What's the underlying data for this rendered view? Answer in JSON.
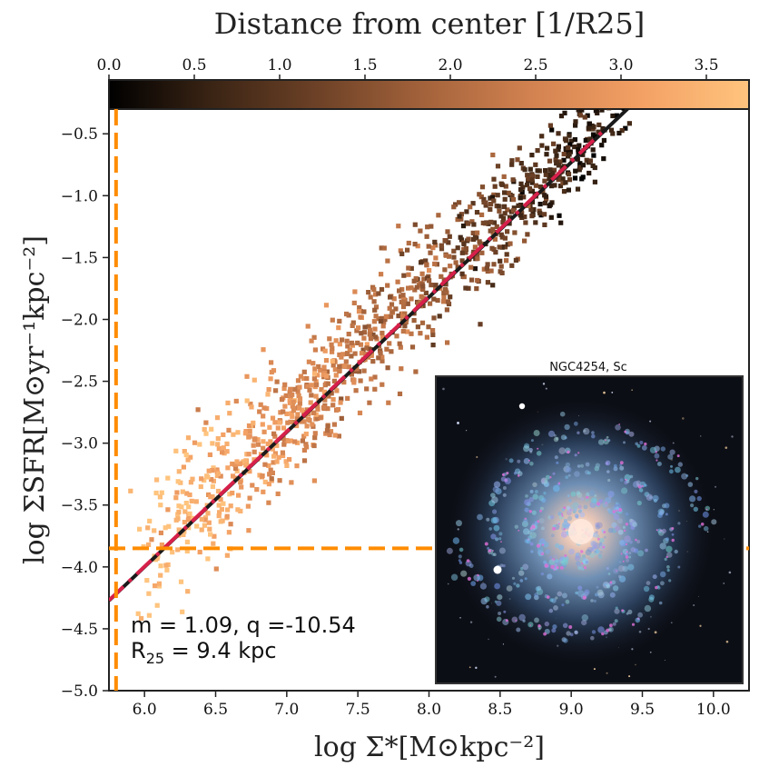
{
  "chart_data": {
    "type": "scatter",
    "xlabel": "log Σ*[M⊙kpc⁻²]",
    "ylabel": "log ΣSFR[M⊙yr⁻¹kpc⁻²]",
    "xlim": [
      5.75,
      10.25
    ],
    "ylim": [
      -5.0,
      -0.3
    ],
    "x_ticks": [
      "6.0",
      "6.5",
      "7.0",
      "7.5",
      "8.0",
      "8.5",
      "9.0",
      "9.5",
      "10.0"
    ],
    "y_ticks": [
      "-0.5",
      "-1.0",
      "-1.5",
      "-2.0",
      "-2.5",
      "-3.0",
      "-3.5",
      "-4.0",
      "-4.5",
      "-5.0"
    ],
    "grid": false,
    "colorbar": {
      "label": "Distance from center [1/R25]",
      "range": [
        0.0,
        3.75
      ],
      "ticks": [
        "0.0",
        "0.5",
        "1.0",
        "1.5",
        "2.0",
        "2.5",
        "3.0",
        "3.5"
      ],
      "colors": [
        "#000000",
        "#3a2414",
        "#6e4227",
        "#a6643c",
        "#d28250",
        "#f3a064",
        "#ffc47e"
      ]
    },
    "fit_line": {
      "slope": 1.09,
      "intercept": -10.54,
      "color": "#1a1a1a",
      "style": "solid"
    },
    "reference_line": {
      "x": [
        5.75,
        9.25
      ],
      "y": [
        -4.27,
        -0.45
      ],
      "color": "#d6204a",
      "style": "dash-dot"
    },
    "threshold_lines": {
      "x": 5.8,
      "y": -3.85,
      "color": "#ff8c00",
      "style": "dashed"
    },
    "point_cloud": {
      "description_free": true,
      "trend": {
        "x_from": 6.0,
        "x_to": 9.4,
        "slope": 1.09,
        "intercept": -10.45,
        "scatter": 0.25
      },
      "count": 1150,
      "color_mapping": "distance decreases with increasing x"
    },
    "annotation": {
      "line1": "m = 1.09, q =-10.54",
      "line2_prefix": "R",
      "line2_sub": "25",
      "line2_suffix": " = 9.4 kpc"
    },
    "inset": {
      "title": "NGC4254, Sc"
    }
  }
}
